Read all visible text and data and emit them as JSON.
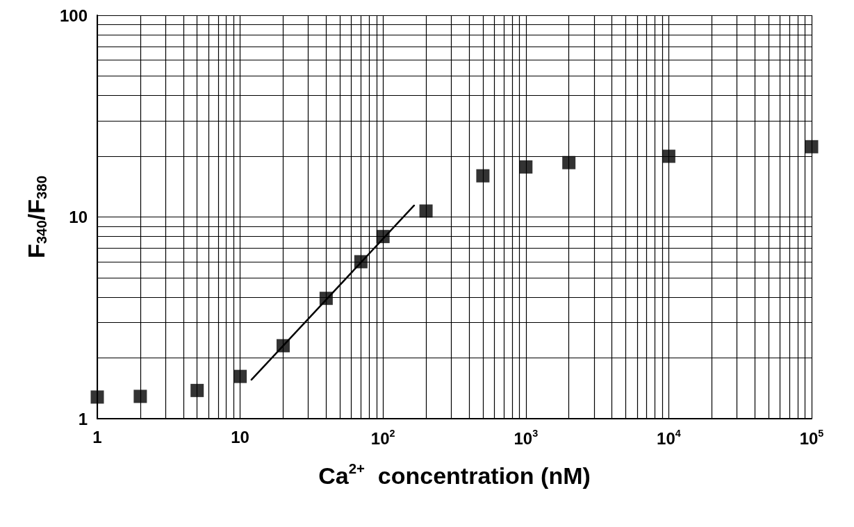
{
  "chart_data": {
    "type": "scatter",
    "xlabel": "Ca$^{2+}$  concentration (nM)",
    "ylabel": "F$_{340}$/F$_{380}$",
    "log": "xy",
    "grid": true,
    "marker": "square",
    "xlim": [
      1,
      100000
    ],
    "xticks": [
      1,
      10,
      {
        "value": 100,
        "label": "10$^{2}$"
      },
      {
        "value": 1000,
        "label": "10$^{3}$"
      },
      {
        "value": 10000,
        "label": "10$^{4}$"
      },
      {
        "value": 100000,
        "label": "10$^{5}$"
      }
    ],
    "ylim": [
      1,
      100
    ],
    "yticks": [
      1,
      10,
      100
    ],
    "series": [
      {
        "type": "scatter",
        "color": "#000000",
        "x": [
          1,
          2,
          5,
          10,
          20,
          40,
          70,
          100,
          200,
          500,
          1000,
          2000,
          10000,
          100000
        ],
        "values": [
          1.28,
          1.29,
          1.38,
          1.62,
          2.3,
          3.95,
          6.0,
          8.0,
          10.7,
          16,
          17.7,
          18.6,
          20,
          22.3
        ]
      },
      {
        "type": "line",
        "color": "#000000",
        "marker": "none",
        "line_style": "solid",
        "x": [
          12,
          165
        ],
        "values": [
          1.56,
          11.4
        ]
      }
    ]
  }
}
